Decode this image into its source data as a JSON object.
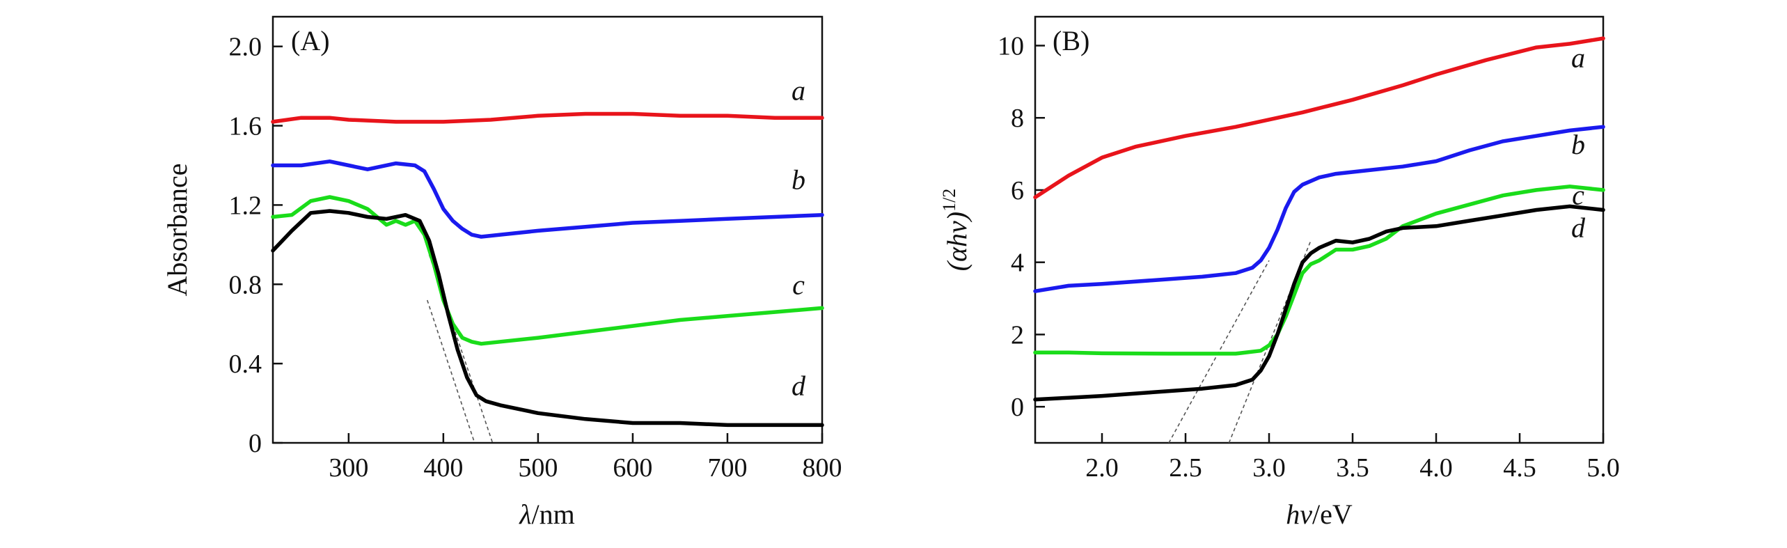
{
  "chart_data": [
    {
      "type": "line",
      "panel_label": "(A)",
      "xlabel_italic": "λ",
      "xlabel_unit": "/nm",
      "ylabel": "Absorbance",
      "xlim": [
        220,
        800
      ],
      "ylim": [
        0,
        2.15
      ],
      "xticks": [
        300,
        400,
        500,
        600,
        700,
        800
      ],
      "xtick_labels": [
        "300",
        "400",
        "500",
        "600",
        "700",
        "800"
      ],
      "yticks": [
        0,
        0.4,
        0.8,
        1.2,
        1.6,
        2.0
      ],
      "ytick_labels": [
        "0",
        "0.4",
        "0.8",
        "1.2",
        "1.6",
        "2.0"
      ],
      "series": [
        {
          "name": "a",
          "color": "#e8141b",
          "x": [
            220,
            250,
            280,
            300,
            350,
            400,
            450,
            500,
            550,
            600,
            650,
            700,
            750,
            800
          ],
          "y": [
            1.62,
            1.64,
            1.64,
            1.63,
            1.62,
            1.62,
            1.63,
            1.65,
            1.66,
            1.66,
            1.65,
            1.65,
            1.64,
            1.64
          ]
        },
        {
          "name": "b",
          "color": "#1a1aee",
          "x": [
            220,
            250,
            280,
            300,
            320,
            350,
            370,
            380,
            390,
            400,
            410,
            420,
            430,
            440,
            460,
            500,
            550,
            600,
            650,
            700,
            750,
            800
          ],
          "y": [
            1.4,
            1.4,
            1.42,
            1.4,
            1.38,
            1.41,
            1.4,
            1.37,
            1.28,
            1.18,
            1.12,
            1.08,
            1.05,
            1.04,
            1.05,
            1.07,
            1.09,
            1.11,
            1.12,
            1.13,
            1.14,
            1.15
          ]
        },
        {
          "name": "c",
          "color": "#1adc1a",
          "x": [
            220,
            240,
            260,
            280,
            300,
            320,
            340,
            350,
            360,
            370,
            380,
            390,
            400,
            410,
            420,
            430,
            440,
            460,
            500,
            550,
            600,
            650,
            700,
            750,
            800
          ],
          "y": [
            1.14,
            1.15,
            1.22,
            1.24,
            1.22,
            1.18,
            1.1,
            1.12,
            1.1,
            1.12,
            1.05,
            0.9,
            0.72,
            0.6,
            0.53,
            0.51,
            0.5,
            0.51,
            0.53,
            0.56,
            0.59,
            0.62,
            0.64,
            0.66,
            0.68
          ]
        },
        {
          "name": "d",
          "color": "#000000",
          "x": [
            220,
            240,
            260,
            280,
            300,
            320,
            340,
            360,
            375,
            385,
            395,
            405,
            415,
            425,
            435,
            445,
            460,
            500,
            550,
            600,
            650,
            700,
            750,
            800
          ],
          "y": [
            0.97,
            1.07,
            1.16,
            1.17,
            1.16,
            1.14,
            1.13,
            1.15,
            1.12,
            1.02,
            0.85,
            0.65,
            0.47,
            0.33,
            0.24,
            0.21,
            0.19,
            0.15,
            0.12,
            0.1,
            0.1,
            0.09,
            0.09,
            0.09
          ]
        }
      ],
      "curve_label_positions": [
        {
          "text": "a",
          "x": 775,
          "y": 1.73
        },
        {
          "text": "b",
          "x": 775,
          "y": 1.28
        },
        {
          "text": "c",
          "x": 775,
          "y": 0.75
        },
        {
          "text": "d",
          "x": 775,
          "y": 0.24
        }
      ],
      "tangent_lines": [
        {
          "x": [
            383,
            433
          ],
          "y": [
            0.72,
            0.0
          ]
        },
        {
          "x": [
            385,
            452
          ],
          "y": [
            0.95,
            0.0
          ]
        }
      ]
    },
    {
      "type": "line",
      "panel_label": "(B)",
      "xlabel_italic": "hv",
      "xlabel_unit": "/eV",
      "ylabel_text": "(αhv)",
      "ylabel_superscript": "1/2",
      "xlim": [
        1.6,
        5.0
      ],
      "ylim": [
        -1.0,
        10.8
      ],
      "xticks": [
        2.0,
        2.5,
        3.0,
        3.5,
        4.0,
        4.5,
        5.0
      ],
      "xtick_labels": [
        "2.0",
        "2.5",
        "3.0",
        "3.5",
        "4.0",
        "4.5",
        "5.0"
      ],
      "yticks": [
        0,
        2,
        4,
        6,
        8,
        10
      ],
      "ytick_labels": [
        "0",
        "2",
        "4",
        "6",
        "8",
        "10"
      ],
      "series": [
        {
          "name": "a",
          "color": "#e8141b",
          "x": [
            1.6,
            1.8,
            2.0,
            2.2,
            2.5,
            2.8,
            3.0,
            3.2,
            3.5,
            3.8,
            4.0,
            4.3,
            4.6,
            4.8,
            5.0
          ],
          "y": [
            5.8,
            6.4,
            6.9,
            7.2,
            7.5,
            7.75,
            7.95,
            8.15,
            8.5,
            8.9,
            9.2,
            9.6,
            9.95,
            10.05,
            10.2
          ]
        },
        {
          "name": "b",
          "color": "#1a1aee",
          "x": [
            1.6,
            1.8,
            2.0,
            2.3,
            2.6,
            2.8,
            2.9,
            2.95,
            3.0,
            3.05,
            3.1,
            3.15,
            3.2,
            3.3,
            3.4,
            3.6,
            3.8,
            4.0,
            4.2,
            4.4,
            4.6,
            4.8,
            5.0
          ],
          "y": [
            3.2,
            3.35,
            3.4,
            3.5,
            3.6,
            3.7,
            3.85,
            4.05,
            4.4,
            4.9,
            5.5,
            5.95,
            6.15,
            6.35,
            6.45,
            6.55,
            6.65,
            6.8,
            7.1,
            7.35,
            7.5,
            7.65,
            7.75
          ]
        },
        {
          "name": "c",
          "color": "#1adc1a",
          "x": [
            1.6,
            1.8,
            2.0,
            2.4,
            2.8,
            2.95,
            3.0,
            3.05,
            3.1,
            3.15,
            3.2,
            3.25,
            3.3,
            3.4,
            3.5,
            3.6,
            3.7,
            3.8,
            4.0,
            4.2,
            4.4,
            4.6,
            4.8,
            5.0
          ],
          "y": [
            1.5,
            1.5,
            1.48,
            1.47,
            1.47,
            1.55,
            1.7,
            2.0,
            2.5,
            3.1,
            3.7,
            3.95,
            4.05,
            4.35,
            4.35,
            4.45,
            4.65,
            5.0,
            5.35,
            5.6,
            5.85,
            6.0,
            6.1,
            6.0
          ]
        },
        {
          "name": "d",
          "color": "#000000",
          "x": [
            1.6,
            1.8,
            2.0,
            2.3,
            2.6,
            2.8,
            2.9,
            2.95,
            3.0,
            3.05,
            3.1,
            3.15,
            3.2,
            3.25,
            3.3,
            3.4,
            3.5,
            3.6,
            3.7,
            3.8,
            4.0,
            4.2,
            4.4,
            4.6,
            4.8,
            5.0
          ],
          "y": [
            0.2,
            0.25,
            0.3,
            0.4,
            0.5,
            0.6,
            0.75,
            1.0,
            1.4,
            2.0,
            2.7,
            3.4,
            4.0,
            4.25,
            4.4,
            4.6,
            4.55,
            4.65,
            4.85,
            4.95,
            5.0,
            5.15,
            5.3,
            5.45,
            5.55,
            5.45
          ]
        }
      ],
      "curve_label_positions": [
        {
          "text": "a",
          "x": 4.85,
          "y": 9.4
        },
        {
          "text": "b",
          "x": 4.85,
          "y": 7.0
        },
        {
          "text": "c",
          "x": 4.85,
          "y": 5.6
        },
        {
          "text": "d",
          "x": 4.85,
          "y": 4.7
        }
      ],
      "tangent_lines": [
        {
          "x": [
            2.4,
            3.0
          ],
          "y": [
            -1.0,
            4.05
          ]
        },
        {
          "x": [
            2.76,
            3.25
          ],
          "y": [
            -1.0,
            4.6
          ]
        }
      ]
    }
  ]
}
